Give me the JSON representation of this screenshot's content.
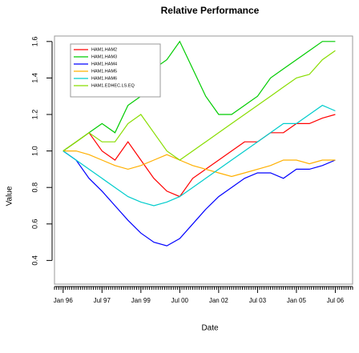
{
  "chart_data": {
    "type": "line",
    "title": "Relative Performance",
    "x_label": "Date",
    "y_label": "Value",
    "x": [
      "1996-01",
      "1996-07",
      "1997-01",
      "1997-07",
      "1998-01",
      "1998-07",
      "1999-01",
      "1999-07",
      "2000-01",
      "2000-07",
      "2001-01",
      "2001-07",
      "2002-01",
      "2002-07",
      "2003-01",
      "2003-07",
      "2004-01",
      "2004-07",
      "2005-01",
      "2005-07",
      "2006-01",
      "2006-07"
    ],
    "series": [
      {
        "name": "HAM1.HAM2",
        "color": "#ff0000",
        "values": [
          1.0,
          1.05,
          1.1,
          1.0,
          0.95,
          1.05,
          0.95,
          0.85,
          0.78,
          0.75,
          0.85,
          0.9,
          0.95,
          1.0,
          1.05,
          1.05,
          1.1,
          1.1,
          1.15,
          1.15,
          1.18,
          1.2
        ]
      },
      {
        "name": "HAM1.HAM3",
        "color": "#00cc00",
        "values": [
          1.0,
          1.05,
          1.1,
          1.15,
          1.1,
          1.25,
          1.3,
          1.45,
          1.5,
          1.6,
          1.45,
          1.3,
          1.2,
          1.2,
          1.25,
          1.3,
          1.4,
          1.45,
          1.5,
          1.55,
          1.6,
          1.6
        ]
      },
      {
        "name": "HAM1.HAM4",
        "color": "#0000ff",
        "values": [
          1.0,
          0.95,
          0.85,
          0.78,
          0.7,
          0.62,
          0.55,
          0.5,
          0.48,
          0.52,
          0.6,
          0.68,
          0.75,
          0.8,
          0.85,
          0.88,
          0.88,
          0.85,
          0.9,
          0.9,
          0.92,
          0.95
        ]
      },
      {
        "name": "HAM1.HAM5",
        "color": "#ffb000",
        "values": [
          1.0,
          1.0,
          0.98,
          0.95,
          0.92,
          0.9,
          0.92,
          0.95,
          0.98,
          0.95,
          0.92,
          0.9,
          0.88,
          0.86,
          0.88,
          0.9,
          0.92,
          0.95,
          0.95,
          0.93,
          0.95,
          0.95
        ]
      },
      {
        "name": "HAM1.HAM6",
        "color": "#00cccc",
        "values": [
          1.0,
          0.95,
          0.9,
          0.85,
          0.8,
          0.75,
          0.72,
          0.7,
          0.72,
          0.75,
          0.8,
          0.85,
          0.9,
          0.95,
          1.0,
          1.05,
          1.1,
          1.15,
          1.15,
          1.2,
          1.25,
          1.22
        ]
      },
      {
        "name": "HAM1.EDHEC.LS.EQ",
        "color": "#88dd00",
        "values": [
          1.0,
          1.05,
          1.1,
          1.05,
          1.05,
          1.15,
          1.2,
          1.1,
          1.0,
          0.95,
          1.0,
          1.05,
          1.1,
          1.15,
          1.2,
          1.25,
          1.3,
          1.35,
          1.4,
          1.42,
          1.5,
          1.55
        ]
      }
    ],
    "xlim": [
      "1995-09",
      "2007-03"
    ],
    "xticks": [
      {
        "value": "1996-01",
        "label": "Jan 96"
      },
      {
        "value": "1997-07",
        "label": "Jul 97"
      },
      {
        "value": "1999-01",
        "label": "Jan 99"
      },
      {
        "value": "2000-07",
        "label": "Jul 00"
      },
      {
        "value": "2002-01",
        "label": "Jan 02"
      },
      {
        "value": "2003-07",
        "label": "Jul 03"
      },
      {
        "value": "2005-01",
        "label": "Jan 05"
      },
      {
        "value": "2006-07",
        "label": "Jul 06"
      }
    ],
    "ylim": [
      0.27,
      1.63
    ],
    "yticks": [
      0.4,
      0.6,
      0.8,
      {
        "value": 1.0,
        "label": "1.0"
      },
      1.2,
      1.4,
      1.6
    ],
    "legend": "top-left"
  }
}
